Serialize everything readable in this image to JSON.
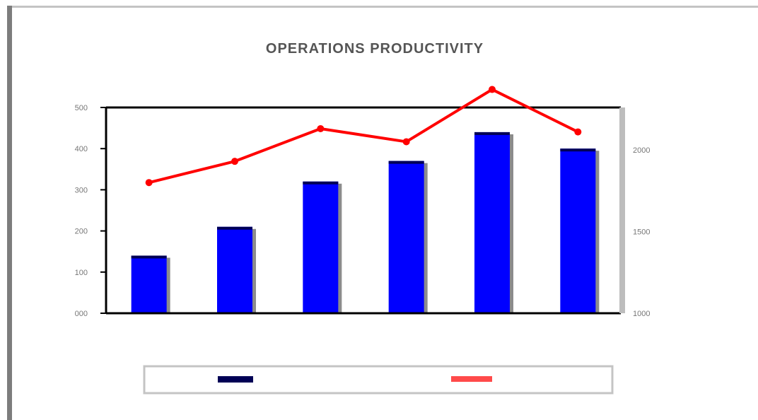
{
  "colors": {
    "bar_fill": "#0000ff",
    "bar_shadow": "#8c8c8c",
    "bar_top": "#000055",
    "line": "#ff0000",
    "axis": "#000000",
    "right_axis": "#bdbdbd",
    "frame_left": "#7d7d7d",
    "frame_top": "#c4c4c4"
  },
  "chart_data": {
    "type": "bar",
    "title": "OPERATIONS PRODUCTIVITY",
    "subtitle": "",
    "xlabel": "",
    "ylabel": "",
    "y2label": "",
    "categories": [
      "",
      "",
      "",
      "",
      "",
      ""
    ],
    "ylim": [
      0,
      500
    ],
    "y_ticks": [
      0,
      100,
      200,
      300,
      400,
      500
    ],
    "y_tick_labels": [
      "000",
      "100",
      "200",
      "300",
      "400",
      "500"
    ],
    "y2lim": [
      1000,
      2000
    ],
    "y2_ticks": [
      1000,
      1500,
      2000
    ],
    "y2_tick_labels": [
      "1000",
      "1500",
      "2000"
    ],
    "series": [
      {
        "name": "",
        "type": "bar",
        "axis": "left",
        "values": [
          140,
          210,
          320,
          370,
          440,
          400
        ]
      },
      {
        "name": "",
        "type": "line",
        "axis": "right",
        "values": [
          1800,
          1930,
          2130,
          2050,
          2370,
          2110
        ]
      }
    ],
    "grid": false,
    "legend": "bottom"
  }
}
